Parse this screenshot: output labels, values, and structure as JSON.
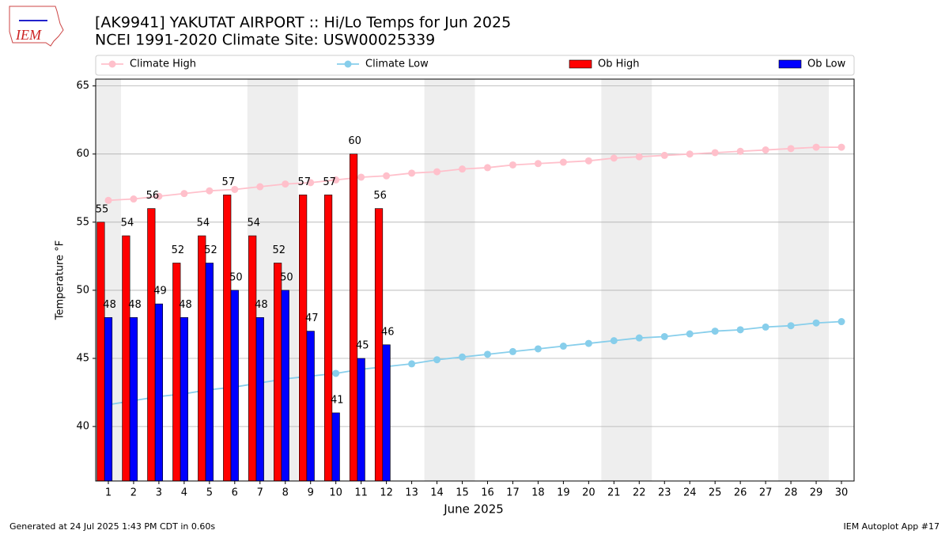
{
  "logo_text": "IEM",
  "footer_left": "Generated at 24 Jul 2025 1:43 PM CDT in 0.60s",
  "footer_right": "IEM Autoplot App #17",
  "chart_data": {
    "type": "bar",
    "title": "[AK9941] YAKUTAT AIRPORT :: Hi/Lo Temps for Jun 2025",
    "subtitle": "NCEI 1991-2020 Climate Site: USW00025339",
    "x_label": "June 2025",
    "y_label": "Temperature °F",
    "x": [
      1,
      2,
      3,
      4,
      5,
      6,
      7,
      8,
      9,
      10,
      11,
      12,
      13,
      14,
      15,
      16,
      17,
      18,
      19,
      20,
      21,
      22,
      23,
      24,
      25,
      26,
      27,
      28,
      29,
      30
    ],
    "xlim": [
      0.5,
      30.5
    ],
    "xticks": [
      1,
      2,
      3,
      4,
      5,
      6,
      7,
      8,
      9,
      10,
      11,
      12,
      13,
      14,
      15,
      16,
      17,
      18,
      19,
      20,
      21,
      22,
      23,
      24,
      25,
      26,
      27,
      28,
      29,
      30
    ],
    "ylim": [
      36,
      65.5
    ],
    "yticks": [
      40,
      45,
      50,
      55,
      60,
      65
    ],
    "grid": true,
    "series": [
      {
        "name": "Climate High",
        "type": "line",
        "color": "#ffc0cb",
        "values": [
          56.6,
          56.7,
          56.9,
          57.1,
          57.3,
          57.4,
          57.6,
          57.8,
          57.9,
          58.1,
          58.3,
          58.4,
          58.6,
          58.7,
          58.9,
          59.0,
          59.2,
          59.3,
          59.4,
          59.5,
          59.7,
          59.8,
          59.9,
          60.0,
          60.1,
          60.2,
          60.3,
          60.4,
          60.5,
          60.5
        ]
      },
      {
        "name": "Climate Low",
        "type": "line",
        "color": "#87ceeb",
        "values": [
          41.6,
          41.9,
          42.2,
          42.4,
          42.7,
          42.9,
          43.2,
          43.5,
          43.7,
          43.9,
          44.2,
          44.4,
          44.6,
          44.9,
          45.1,
          45.3,
          45.5,
          45.7,
          45.9,
          46.1,
          46.3,
          46.5,
          46.6,
          46.8,
          47.0,
          47.1,
          47.3,
          47.4,
          47.6,
          47.7
        ]
      },
      {
        "name": "Ob High",
        "type": "bar",
        "color": "#ff0000",
        "values": [
          55,
          54,
          56,
          52,
          54,
          57,
          54,
          52,
          57,
          57,
          60,
          56,
          null,
          null,
          null,
          null,
          null,
          null,
          null,
          null,
          null,
          null,
          null,
          null,
          null,
          null,
          null,
          null,
          null,
          null
        ]
      },
      {
        "name": "Ob Low",
        "type": "bar",
        "color": "#0000ff",
        "values": [
          48,
          48,
          49,
          48,
          52,
          50,
          48,
          50,
          47,
          41,
          45,
          46,
          null,
          null,
          null,
          null,
          null,
          null,
          null,
          null,
          null,
          null,
          null,
          null,
          null,
          null,
          null,
          null,
          null,
          null
        ]
      }
    ]
  }
}
